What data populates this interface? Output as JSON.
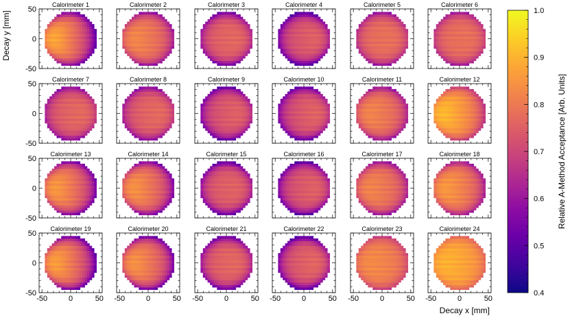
{
  "chart_data": {
    "type": "heatmap",
    "layout": {
      "rows": 4,
      "cols": 6
    },
    "panels": [
      {
        "title": "Calorimeter 1",
        "base": 0.8,
        "grad": 0.16,
        "rim": 0.26
      },
      {
        "title": "Calorimeter 2",
        "base": 0.8,
        "grad": 0.06,
        "rim": 0.22
      },
      {
        "title": "Calorimeter 3",
        "base": 0.76,
        "grad": -0.02,
        "rim": 0.24
      },
      {
        "title": "Calorimeter 4",
        "base": 0.74,
        "grad": -0.04,
        "rim": 0.28
      },
      {
        "title": "Calorimeter 5",
        "base": 0.78,
        "grad": -0.01,
        "rim": 0.2
      },
      {
        "title": "Calorimeter 6",
        "base": 0.78,
        "grad": -0.01,
        "rim": 0.18
      },
      {
        "title": "Calorimeter 7",
        "base": 0.76,
        "grad": -0.03,
        "rim": 0.2
      },
      {
        "title": "Calorimeter 8",
        "base": 0.76,
        "grad": -0.03,
        "rim": 0.2
      },
      {
        "title": "Calorimeter 9",
        "base": 0.74,
        "grad": -0.04,
        "rim": 0.24
      },
      {
        "title": "Calorimeter 10",
        "base": 0.74,
        "grad": -0.05,
        "rim": 0.24
      },
      {
        "title": "Calorimeter 11",
        "base": 0.8,
        "grad": 0.05,
        "rim": 0.22
      },
      {
        "title": "Calorimeter 12",
        "base": 0.86,
        "grad": 0.1,
        "rim": 0.18
      },
      {
        "title": "Calorimeter 13",
        "base": 0.8,
        "grad": 0.12,
        "rim": 0.26
      },
      {
        "title": "Calorimeter 14",
        "base": 0.8,
        "grad": 0.1,
        "rim": 0.26
      },
      {
        "title": "Calorimeter 15",
        "base": 0.75,
        "grad": -0.02,
        "rim": 0.26
      },
      {
        "title": "Calorimeter 16",
        "base": 0.74,
        "grad": -0.04,
        "rim": 0.26
      },
      {
        "title": "Calorimeter 17",
        "base": 0.8,
        "grad": 0.05,
        "rim": 0.22
      },
      {
        "title": "Calorimeter 18",
        "base": 0.82,
        "grad": 0.08,
        "rim": 0.22
      },
      {
        "title": "Calorimeter 19",
        "base": 0.8,
        "grad": 0.14,
        "rim": 0.28
      },
      {
        "title": "Calorimeter 20",
        "base": 0.8,
        "grad": 0.1,
        "rim": 0.28
      },
      {
        "title": "Calorimeter 21",
        "base": 0.76,
        "grad": -0.02,
        "rim": 0.26
      },
      {
        "title": "Calorimeter 22",
        "base": 0.75,
        "grad": -0.04,
        "rim": 0.28
      },
      {
        "title": "Calorimeter 23",
        "base": 0.82,
        "grad": 0.03,
        "rim": 0.14
      },
      {
        "title": "Calorimeter 24",
        "base": 0.88,
        "grad": 0.04,
        "rim": 0.12
      }
    ],
    "xlabel": "Decay x [mm]",
    "ylabel": "Decay y [mm]",
    "xlim": [
      -55,
      55
    ],
    "ylim": [
      -50,
      50
    ],
    "xticks": [
      -50,
      0,
      50
    ],
    "yticks": [
      -50,
      0,
      50
    ],
    "colorbar": {
      "label": "Relative A-Method Acceptance [Arb. Units]",
      "range": [
        0.4,
        1.0
      ],
      "ticks": [
        0.4,
        0.5,
        0.6,
        0.7,
        0.8,
        0.9,
        1.0
      ],
      "colormap": "plasma"
    },
    "grid": false,
    "legend": "none"
  }
}
